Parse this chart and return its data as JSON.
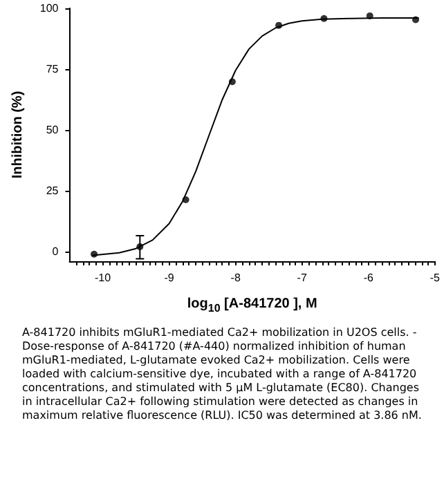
{
  "chart_data": {
    "type": "scatter",
    "xlabel": "log$_{10}$ [A-841720 ], M",
    "ylabel": "Inhibition (%)",
    "xlim": [
      -10.5,
      -5
    ],
    "ylim": [
      -4,
      100
    ],
    "yticks": [
      0,
      25,
      50,
      75,
      100
    ],
    "xticks": [
      -10,
      -9,
      -8,
      -7,
      -6,
      -5,
      {
        "value": -10.4,
        "label": null
      },
      {
        "value": -10.3,
        "label": null
      },
      {
        "value": -10.2,
        "label": null
      },
      {
        "value": -10.1,
        "label": null
      },
      {
        "value": -9.9,
        "label": null
      },
      {
        "value": -9.8,
        "label": null
      },
      {
        "value": -9.7,
        "label": null
      },
      {
        "value": -9.6,
        "label": null
      },
      {
        "value": -9.5,
        "label": null
      },
      {
        "value": -9.4,
        "label": null
      },
      {
        "value": -9.3,
        "label": null
      },
      {
        "value": -9.2,
        "label": null
      },
      {
        "value": -9.1,
        "label": null
      },
      {
        "value": -8.9,
        "label": null
      },
      {
        "value": -8.8,
        "label": null
      },
      {
        "value": -8.7,
        "label": null
      },
      {
        "value": -8.6,
        "label": null
      },
      {
        "value": -8.5,
        "label": null
      },
      {
        "value": -8.4,
        "label": null
      },
      {
        "value": -8.3,
        "label": null
      },
      {
        "value": -8.2,
        "label": null
      },
      {
        "value": -8.1,
        "label": null
      },
      {
        "value": -7.9,
        "label": null
      },
      {
        "value": -7.8,
        "label": null
      },
      {
        "value": -7.7,
        "label": null
      },
      {
        "value": -7.6,
        "label": null
      },
      {
        "value": -7.5,
        "label": null
      },
      {
        "value": -7.4,
        "label": null
      },
      {
        "value": -7.3,
        "label": null
      },
      {
        "value": -7.2,
        "label": null
      },
      {
        "value": -7.1,
        "label": null
      },
      {
        "value": -6.9,
        "label": null
      },
      {
        "value": -6.8,
        "label": null
      },
      {
        "value": -6.7,
        "label": null
      },
      {
        "value": -6.6,
        "label": null
      },
      {
        "value": -6.5,
        "label": null
      },
      {
        "value": -6.4,
        "label": null
      },
      {
        "value": -6.3,
        "label": null
      },
      {
        "value": -6.2,
        "label": null
      },
      {
        "value": -6.1,
        "label": null
      },
      {
        "value": -5.9,
        "label": null
      },
      {
        "value": -5.8,
        "label": null
      },
      {
        "value": -5.7,
        "label": null
      },
      {
        "value": -5.6,
        "label": null
      },
      {
        "value": -5.5,
        "label": null
      },
      {
        "value": -5.4,
        "label": null
      },
      {
        "value": -5.3,
        "label": null
      },
      {
        "value": -5.2,
        "label": null
      },
      {
        "value": -5.1,
        "label": null
      }
    ],
    "grid": false,
    "marker": "circle",
    "series": [
      {
        "color": "#000000",
        "x": [
          -10.13,
          -9.44,
          -8.75,
          -8.05,
          -7.35,
          -6.67,
          -5.98,
          -5.29
        ],
        "values": [
          -1.1,
          2,
          21.3,
          69.8,
          93,
          95.8,
          96.9,
          95.3
        ],
        "errors": [
          null,
          [
            -3,
            6.5
          ],
          null,
          null,
          null,
          null,
          null,
          null
        ]
      },
      {
        "type": "line",
        "color": "#000000",
        "marker": "none",
        "line_style": "solid",
        "x": [
          -10.15,
          -9.75,
          -9.5,
          -9.25,
          -9,
          -8.8,
          -8.6,
          -8.41,
          -8.2,
          -8,
          -7.8,
          -7.6,
          -7.4,
          -7.2,
          -7,
          -6.7,
          -6.3,
          -5.8,
          -5.25
        ],
        "values": [
          -1.6,
          -0.5,
          1.2,
          4.7,
          11.5,
          20.5,
          32.9,
          47,
          62.5,
          74.5,
          83.2,
          88.6,
          91.9,
          93.8,
          94.8,
          95.5,
          95.8,
          96,
          96
        ]
      }
    ],
    "annotations": [
      "A-841720 inhibits mGluR1-mediated Ca2+ mobilization in U2OS cells. - Dose-response of A-841720 (#A-440) normalized inhibition of human mGluR1-mediated, L-glutamate evoked Ca2+ mobilization. Cells were loaded with calcium-sensitive dye, incubated with a range of A-841720 concentrations, and stimulated with 5 µM L-glutamate (EC80). Changes in intracellular Ca2+ following stimulation were detected as changes in maximum relative fluorescence (RLU). IC50 was determined at 3.86 nM."
    ]
  }
}
